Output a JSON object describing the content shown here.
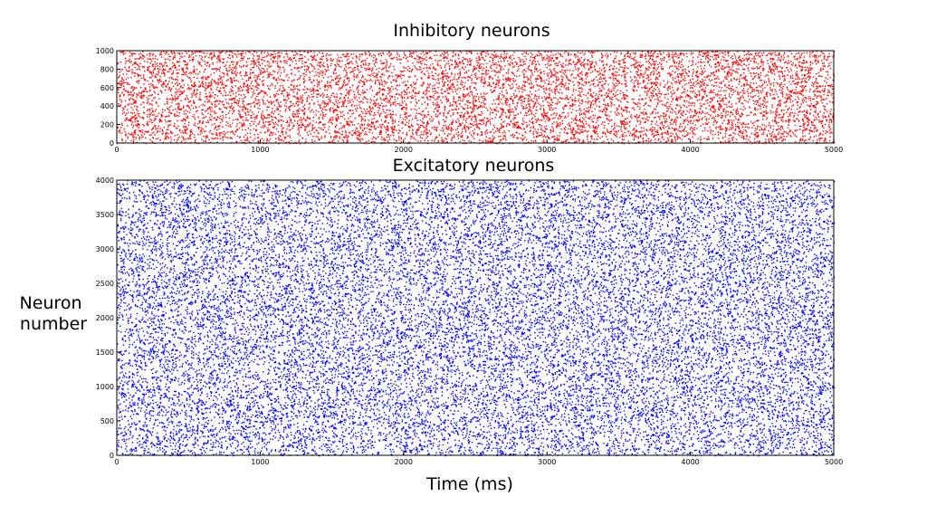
{
  "chart_data": [
    {
      "type": "scatter",
      "title": "Inhibitory neurons",
      "xlim": [
        0,
        5000
      ],
      "ylim": [
        0,
        1000
      ],
      "x_ticks": [
        0,
        1000,
        2000,
        3000,
        4000,
        5000
      ],
      "y_ticks": [
        0,
        200,
        400,
        600,
        800,
        1000
      ],
      "series": [
        {
          "color": "#ff0000",
          "point_count": 9000,
          "x_range": [
            0,
            5000
          ],
          "y_range": [
            0,
            1000
          ],
          "distribution": "uniform random spike raster"
        }
      ]
    },
    {
      "type": "scatter",
      "title": "Excitatory neurons",
      "xlabel": "Time (ms)",
      "ylabel_line1": "Neuron",
      "ylabel_line2": "number",
      "xlim": [
        0,
        5000
      ],
      "ylim": [
        0,
        4000
      ],
      "x_ticks": [
        0,
        1000,
        2000,
        3000,
        4000,
        5000
      ],
      "y_ticks": [
        0,
        500,
        1000,
        1500,
        2000,
        2500,
        3000,
        3500,
        4000
      ],
      "series": [
        {
          "color": "#0000ff",
          "point_count": 22000,
          "x_range": [
            0,
            5000
          ],
          "y_range": [
            0,
            4000
          ],
          "distribution": "uniform random spike raster"
        }
      ]
    }
  ]
}
